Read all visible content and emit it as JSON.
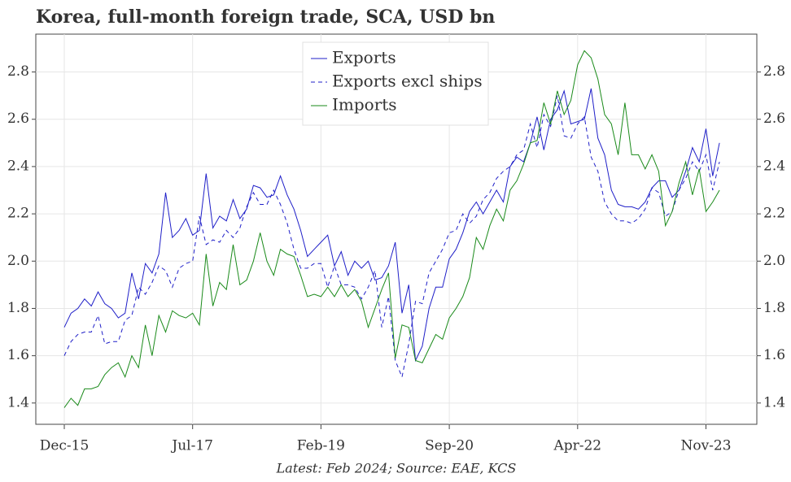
{
  "chart_data": {
    "type": "line",
    "title": "Korea, full-month foreign trade, SCA, USD bn",
    "caption": "Latest: Feb 2024; Source: EAE, KCS",
    "categories": [
      "Dec-15",
      null,
      null,
      null,
      null,
      null,
      null,
      null,
      null,
      null,
      null,
      null,
      null,
      null,
      null,
      null,
      null,
      null,
      null,
      "Jul-17",
      null,
      null,
      null,
      null,
      null,
      null,
      null,
      null,
      null,
      null,
      null,
      null,
      null,
      null,
      null,
      null,
      null,
      null,
      "Feb-19",
      null,
      null,
      null,
      null,
      null,
      null,
      null,
      null,
      null,
      null,
      null,
      null,
      null,
      null,
      null,
      null,
      null,
      null,
      "Sep-20",
      null,
      null,
      null,
      null,
      null,
      null,
      null,
      null,
      null,
      null,
      null,
      null,
      null,
      null,
      null,
      null,
      null,
      null,
      "Apr-22",
      null,
      null,
      null,
      null,
      null,
      null,
      null,
      null,
      null,
      null,
      null,
      null,
      null,
      null,
      null,
      null,
      null,
      null,
      "Nov-23",
      null,
      null
    ],
    "series": [
      {
        "name": "Exports",
        "color": "#1f1fc8",
        "dashed": false,
        "values": [
          1.72,
          1.78,
          1.8,
          1.84,
          1.81,
          1.87,
          1.82,
          1.8,
          1.76,
          1.78,
          1.95,
          1.84,
          1.99,
          1.95,
          2.03,
          2.29,
          2.1,
          2.13,
          2.18,
          2.11,
          2.13,
          2.37,
          2.14,
          2.19,
          2.17,
          2.26,
          2.18,
          2.22,
          2.32,
          2.31,
          2.27,
          2.28,
          2.36,
          2.28,
          2.22,
          2.13,
          2.02,
          2.05,
          2.08,
          2.11,
          1.98,
          2.04,
          1.94,
          2.0,
          1.97,
          2.0,
          1.92,
          1.93,
          1.98,
          2.08,
          1.78,
          1.9,
          1.58,
          1.64,
          1.8,
          1.89,
          1.89,
          2.01,
          2.05,
          2.12,
          2.21,
          2.25,
          2.2,
          2.25,
          2.3,
          2.25,
          2.4,
          2.44,
          2.42,
          2.5,
          2.61,
          2.47,
          2.6,
          2.64,
          2.72,
          2.58,
          2.59,
          2.6,
          2.73,
          2.52,
          2.45,
          2.3,
          2.24,
          2.23,
          2.23,
          2.22,
          2.25,
          2.31,
          2.34,
          2.34,
          2.27,
          2.3,
          2.38,
          2.48,
          2.42,
          2.56,
          2.36,
          2.5
        ]
      },
      {
        "name": "Exports excl ships",
        "color": "#1f1fc8",
        "dashed": true,
        "values": [
          1.6,
          1.66,
          1.69,
          1.7,
          1.7,
          1.77,
          1.65,
          1.66,
          1.66,
          1.75,
          1.77,
          1.89,
          1.86,
          1.91,
          1.98,
          1.96,
          1.89,
          1.97,
          1.99,
          2.0,
          2.19,
          2.07,
          2.09,
          2.08,
          2.13,
          2.1,
          2.14,
          2.23,
          2.29,
          2.24,
          2.24,
          2.3,
          2.24,
          2.16,
          2.05,
          1.97,
          1.97,
          1.99,
          1.99,
          1.89,
          1.98,
          1.9,
          1.9,
          1.89,
          1.84,
          1.89,
          1.96,
          1.72,
          1.85,
          1.58,
          1.51,
          1.65,
          1.83,
          1.82,
          1.95,
          2.0,
          2.05,
          2.12,
          2.13,
          2.2,
          2.16,
          2.19,
          2.26,
          2.29,
          2.35,
          2.38,
          2.4,
          2.45,
          2.47,
          2.58,
          2.48,
          2.62,
          2.57,
          2.7,
          2.53,
          2.52,
          2.58,
          2.61,
          2.44,
          2.38,
          2.25,
          2.2,
          2.17,
          2.17,
          2.16,
          2.18,
          2.22,
          2.31,
          2.29,
          2.19,
          2.21,
          2.3,
          2.35,
          2.42,
          2.38,
          2.45,
          2.3,
          2.42
        ]
      },
      {
        "name": "Imports",
        "color": "#1a8a1a",
        "dashed": false,
        "values": [
          1.38,
          1.42,
          1.39,
          1.46,
          1.46,
          1.47,
          1.52,
          1.55,
          1.57,
          1.51,
          1.6,
          1.55,
          1.73,
          1.6,
          1.77,
          1.7,
          1.79,
          1.77,
          1.76,
          1.78,
          1.73,
          2.03,
          1.81,
          1.91,
          1.88,
          2.07,
          1.9,
          1.92,
          2.0,
          2.12,
          2.0,
          1.94,
          2.05,
          2.03,
          2.02,
          1.94,
          1.85,
          1.86,
          1.85,
          1.89,
          1.85,
          1.9,
          1.85,
          1.88,
          1.83,
          1.72,
          1.8,
          1.88,
          1.95,
          1.59,
          1.73,
          1.72,
          1.58,
          1.57,
          1.63,
          1.69,
          1.67,
          1.76,
          1.8,
          1.85,
          1.93,
          2.1,
          2.05,
          2.15,
          2.22,
          2.17,
          2.3,
          2.34,
          2.41,
          2.5,
          2.51,
          2.67,
          2.58,
          2.72,
          2.62,
          2.68,
          2.83,
          2.89,
          2.86,
          2.77,
          2.62,
          2.58,
          2.45,
          2.67,
          2.45,
          2.45,
          2.39,
          2.45,
          2.38,
          2.15,
          2.21,
          2.33,
          2.42,
          2.28,
          2.39,
          2.21,
          2.25,
          2.3
        ]
      }
    ],
    "ylim": [
      1.31,
      2.96
    ],
    "yticks": [
      1.4,
      1.6,
      1.8,
      {
        "value": 2,
        "label": "2.0"
      },
      2.2,
      2.4,
      2.6,
      2.8
    ],
    "grid": true
  }
}
